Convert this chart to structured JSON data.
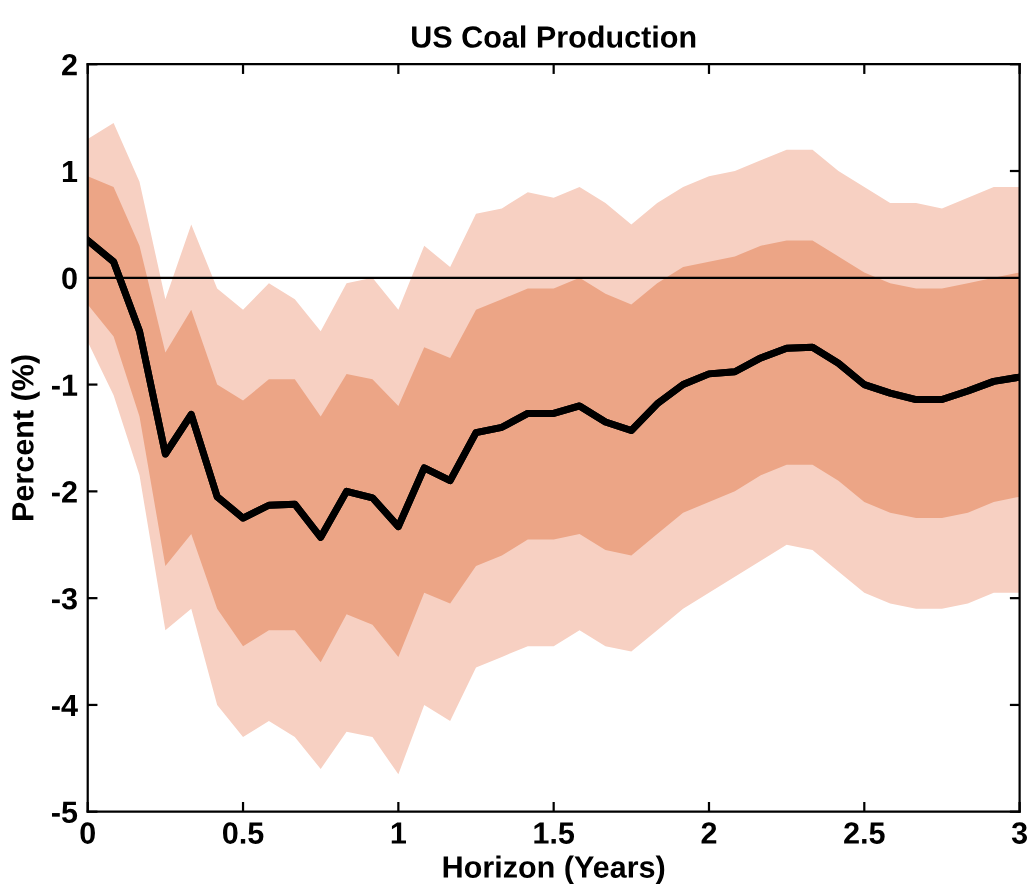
{
  "chart_data": {
    "type": "line",
    "title": "US Coal Production",
    "xlabel": "Horizon (Years)",
    "ylabel": "Percent (%)",
    "x": [
      0,
      0.0833,
      0.1667,
      0.25,
      0.3333,
      0.4167,
      0.5,
      0.5833,
      0.6667,
      0.75,
      0.8333,
      0.9167,
      1,
      1.0833,
      1.1667,
      1.25,
      1.3333,
      1.4167,
      1.5,
      1.5833,
      1.6667,
      1.75,
      1.8333,
      1.9167,
      2,
      2.0833,
      2.1667,
      2.25,
      2.3333,
      2.4167,
      2.5,
      2.5833,
      2.6667,
      2.75,
      2.8333,
      2.9167,
      3
    ],
    "series": [
      {
        "color": "#000000",
        "colors": [
          "#f7d0c2",
          "#f7d0c2",
          "#f7d0c2",
          "#f7d0c2",
          "#f7d0c2",
          "#f7d0c2",
          "#f7d0c2",
          "#f7d0c2",
          "#f7d0c2",
          "#f7d0c2",
          "#f7d0c2",
          "#f7d0c2",
          "#f7d0c2",
          "#f7d0c2",
          "#f7d0c2",
          "#f7d0c2",
          "#f7d0c2",
          "#f7d0c2",
          "#f7d0c2",
          "#f7d0c2",
          "#f7d0c2",
          "#f7d0c2",
          "#f7d0c2",
          "#f7d0c2",
          "#f7d0c2",
          "#f7d0c2",
          "#f7d0c2",
          "#f7d0c2",
          "#f7d0c2",
          "#f7d0c2",
          "#f7d0c2",
          "#f7d0c2",
          "#f7d0c2",
          "#f7d0c2",
          "#f7d0c2",
          "#f7d0c2",
          "#f7d0c2"
        ],
        "values": [
          0.35,
          0.15,
          -0.5,
          -1.65,
          -1.28,
          -2.05,
          -2.25,
          -2.13,
          -2.12,
          -2.43,
          -2.0,
          -2.06,
          -2.33,
          -1.78,
          -1.9,
          -1.45,
          -1.4,
          -1.27,
          -1.27,
          -1.2,
          -1.35,
          -1.43,
          -1.18,
          -1.0,
          -0.9,
          -0.88,
          -0.75,
          -0.66,
          -0.65,
          -0.8,
          -1.0,
          -1.08,
          -1.14,
          -1.14,
          -1.06,
          -0.97,
          -0.93
        ],
        "lower": [
          -0.6,
          -1.1,
          -1.85,
          -3.3,
          -3.1,
          -4.0,
          -4.3,
          -4.15,
          -4.3,
          -4.6,
          -4.25,
          -4.3,
          -4.65,
          -4.0,
          -4.15,
          -3.65,
          -3.55,
          -3.45,
          -3.45,
          -3.3,
          -3.45,
          -3.5,
          -3.3,
          -3.1,
          -2.95,
          -2.8,
          -2.65,
          -2.5,
          -2.55,
          -2.75,
          -2.95,
          -3.05,
          -3.1,
          -3.1,
          -3.05,
          -2.95,
          -2.95
        ],
        "upper": [
          1.3,
          1.45,
          0.9,
          -0.2,
          0.5,
          -0.1,
          -0.3,
          -0.05,
          -0.2,
          -0.5,
          -0.05,
          0.0,
          -0.3,
          0.3,
          0.1,
          0.6,
          0.65,
          0.8,
          0.75,
          0.85,
          0.7,
          0.5,
          0.7,
          0.85,
          0.95,
          1.0,
          1.1,
          1.2,
          1.2,
          1.0,
          0.85,
          0.7,
          0.7,
          0.65,
          0.75,
          0.85,
          0.85
        ]
      },
      {
        "color": "#000000",
        "colors": [
          "#eca586",
          "#eca586",
          "#eca586",
          "#eca586",
          "#eca586",
          "#eca586",
          "#eca586",
          "#eca586",
          "#eca586",
          "#eca586",
          "#eca586",
          "#eca586",
          "#eca586",
          "#eca586",
          "#eca586",
          "#eca586",
          "#eca586",
          "#eca586",
          "#eca586",
          "#eca586",
          "#eca586",
          "#eca586",
          "#eca586",
          "#eca586",
          "#eca586",
          "#eca586",
          "#eca586",
          "#eca586",
          "#eca586",
          "#eca586",
          "#eca586",
          "#eca586",
          "#eca586",
          "#eca586",
          "#eca586",
          "#eca586",
          "#eca586"
        ],
        "values": [
          0.35,
          0.15,
          -0.5,
          -1.65,
          -1.28,
          -2.05,
          -2.25,
          -2.13,
          -2.12,
          -2.43,
          -2.0,
          -2.06,
          -2.33,
          -1.78,
          -1.9,
          -1.45,
          -1.4,
          -1.27,
          -1.27,
          -1.2,
          -1.35,
          -1.43,
          -1.18,
          -1.0,
          -0.9,
          -0.88,
          -0.75,
          -0.66,
          -0.65,
          -0.8,
          -1.0,
          -1.08,
          -1.14,
          -1.14,
          -1.06,
          -0.97,
          -0.93
        ],
        "lower": [
          -0.25,
          -0.55,
          -1.3,
          -2.7,
          -2.4,
          -3.1,
          -3.45,
          -3.3,
          -3.3,
          -3.6,
          -3.15,
          -3.25,
          -3.55,
          -2.95,
          -3.05,
          -2.7,
          -2.6,
          -2.45,
          -2.45,
          -2.4,
          -2.55,
          -2.6,
          -2.4,
          -2.2,
          -2.1,
          -2.0,
          -1.85,
          -1.75,
          -1.75,
          -1.9,
          -2.1,
          -2.2,
          -2.25,
          -2.25,
          -2.2,
          -2.1,
          -2.05
        ],
        "upper": [
          0.95,
          0.85,
          0.3,
          -0.7,
          -0.3,
          -1.0,
          -1.15,
          -0.95,
          -0.95,
          -1.3,
          -0.9,
          -0.95,
          -1.2,
          -0.65,
          -0.75,
          -0.3,
          -0.2,
          -0.1,
          -0.1,
          0.0,
          -0.15,
          -0.25,
          -0.05,
          0.1,
          0.15,
          0.2,
          0.3,
          0.35,
          0.35,
          0.2,
          0.05,
          -0.05,
          -0.1,
          -0.1,
          -0.05,
          0.0,
          0.05
        ]
      }
    ],
    "xlim": [
      0,
      3
    ],
    "xticks": [
      0,
      0.5,
      1,
      1.5,
      2,
      2.5,
      3
    ],
    "ylim": [
      -5,
      2
    ],
    "yticks": [
      -5,
      -4,
      -3,
      -2,
      -1,
      0,
      1,
      2
    ],
    "ref_lines": [
      {
        "axis": "y",
        "value": 0,
        "color": "#000000",
        "line_style": "solid"
      }
    ],
    "line_style": "solid",
    "marker": "none",
    "grid": false,
    "legend": false
  }
}
